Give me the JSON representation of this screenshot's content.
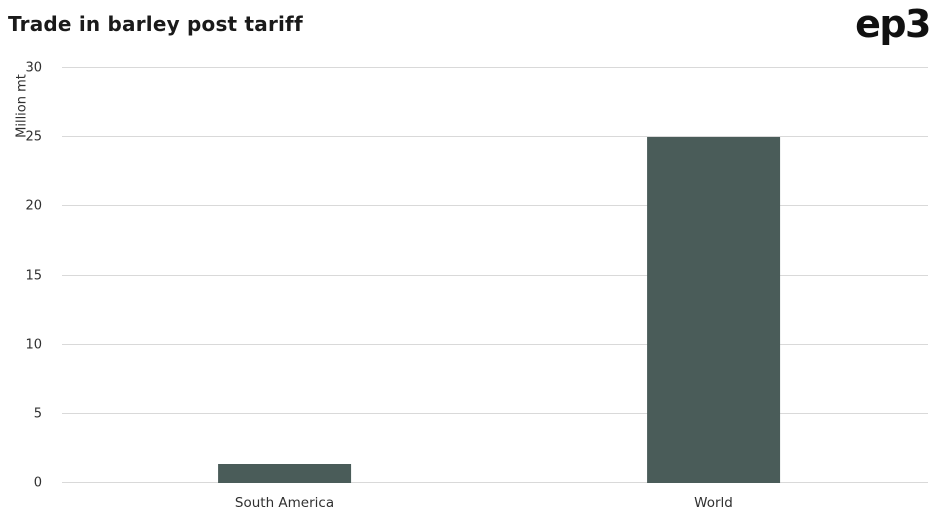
{
  "header": {
    "logo": "ep3"
  },
  "chart_data": {
    "type": "bar",
    "title": "Trade in barley post tariff",
    "categories": [
      "South America",
      "World"
    ],
    "values": [
      1.4,
      25
    ],
    "xlabel": "",
    "ylabel": "Million mt",
    "ylim": [
      0,
      30
    ],
    "yticks": [
      0,
      5,
      10,
      15,
      20,
      25,
      30
    ],
    "bar_color": "#4a5c59",
    "gridline_color": "#d9d9d9",
    "legend": "none",
    "grid": "horizontal"
  }
}
